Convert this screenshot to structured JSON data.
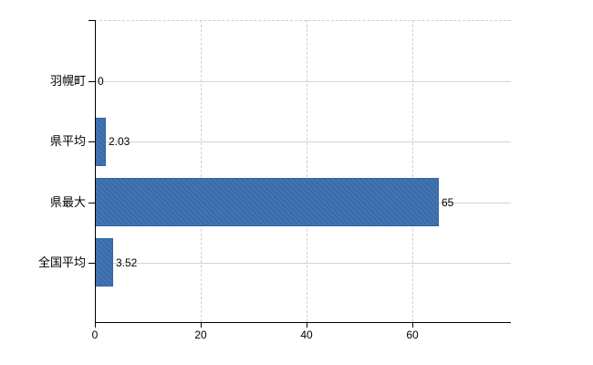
{
  "chart": {
    "background": "#ffffff",
    "bar_color": "#3f70af",
    "bar_border_color": "#35659f",
    "grid_color": "#cfd6cf",
    "dashed_grid_color": "#cfcfcf",
    "axis_color": "#000000",
    "text_color": "#000000"
  },
  "chart_data": {
    "type": "bar",
    "orientation": "horizontal",
    "title": "",
    "xlabel": "",
    "ylabel": "",
    "categories": [
      "羽幌町",
      "県平均",
      "県最大",
      "全国平均"
    ],
    "values": [
      0,
      2.03,
      65,
      3.52
    ],
    "value_labels": [
      "0",
      "2.03",
      "65",
      "3.52"
    ],
    "x_ticks": [
      0,
      20,
      40,
      60
    ],
    "xlim": [
      0,
      78.6
    ],
    "grid": "on",
    "grid_horizontal_style": "solid",
    "grid_vertical_style": "dashed",
    "legend": "none"
  }
}
